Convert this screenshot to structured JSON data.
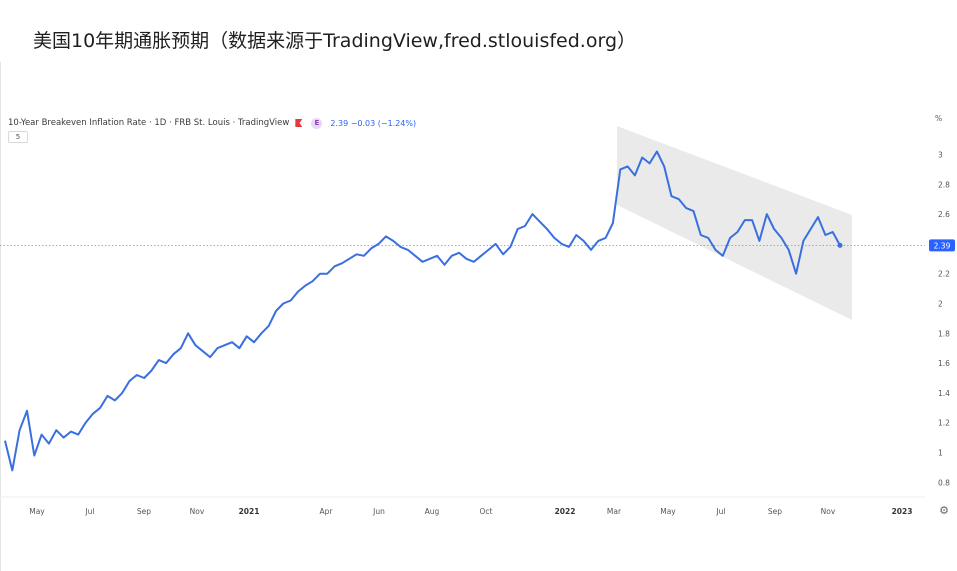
{
  "page": {
    "title": "美国10年期通胀预期（数据来源于TradingView,fred.stlouisfed.org）"
  },
  "header": {
    "symbol": "10-Year Breakeven Inflation Rate · 1D · FRB St. Louis · TradingView",
    "badge": "E",
    "quote": "2.39 −0.03 (−1.24%)",
    "interval": "5",
    "unit": "%"
  },
  "colors": {
    "line": "#3a6fe0",
    "channel": "#e6e6e8",
    "price_label_bg": "#2962ff",
    "flag": "#e5383b"
  },
  "chart_data": {
    "type": "line",
    "title": "10-Year Breakeven Inflation Rate",
    "ylabel": "%",
    "ylim": [
      0.75,
      3.15
    ],
    "y_ticks": [
      0.8,
      1,
      1.2,
      1.4,
      1.6,
      1.8,
      2,
      2.2,
      2.4,
      2.6,
      2.8,
      3
    ],
    "x_ticks": [
      "May",
      "Jul",
      "Sep",
      "Nov",
      "2021",
      "Apr",
      "Jun",
      "Aug",
      "Oct",
      "2022",
      "Mar",
      "May",
      "Jul",
      "Sep",
      "Nov",
      "2023"
    ],
    "last_value_label": "2.39",
    "grid": false,
    "series": [
      {
        "values": [
          1.08,
          0.88,
          1.15,
          1.28,
          0.98,
          1.12,
          1.06,
          1.15,
          1.1,
          1.14,
          1.12,
          1.2,
          1.26,
          1.3,
          1.38,
          1.35,
          1.4,
          1.48,
          1.52,
          1.5,
          1.55,
          1.62,
          1.6,
          1.66,
          1.7,
          1.8,
          1.72,
          1.68,
          1.64,
          1.7,
          1.72,
          1.74,
          1.7,
          1.78,
          1.74,
          1.8,
          1.85,
          1.95,
          2.0,
          2.02,
          2.08,
          2.12,
          2.15,
          2.2,
          2.2,
          2.25,
          2.27,
          2.3,
          2.33,
          2.32,
          2.37,
          2.4,
          2.45,
          2.42,
          2.38,
          2.36,
          2.32,
          2.28,
          2.3,
          2.32,
          2.26,
          2.32,
          2.34,
          2.3,
          2.28,
          2.32,
          2.36,
          2.4,
          2.33,
          2.38,
          2.5,
          2.52,
          2.6,
          2.55,
          2.5,
          2.44,
          2.4,
          2.38,
          2.46,
          2.42,
          2.36,
          2.42,
          2.44,
          2.54,
          2.9,
          2.92,
          2.86,
          2.98,
          2.94,
          3.02,
          2.92,
          2.72,
          2.7,
          2.64,
          2.62,
          2.46,
          2.44,
          2.36,
          2.32,
          2.44,
          2.48,
          2.56,
          2.56,
          2.42,
          2.6,
          2.5,
          2.44,
          2.36,
          2.2,
          2.42,
          2.5,
          2.58,
          2.46,
          2.48,
          2.39
        ]
      }
    ]
  }
}
